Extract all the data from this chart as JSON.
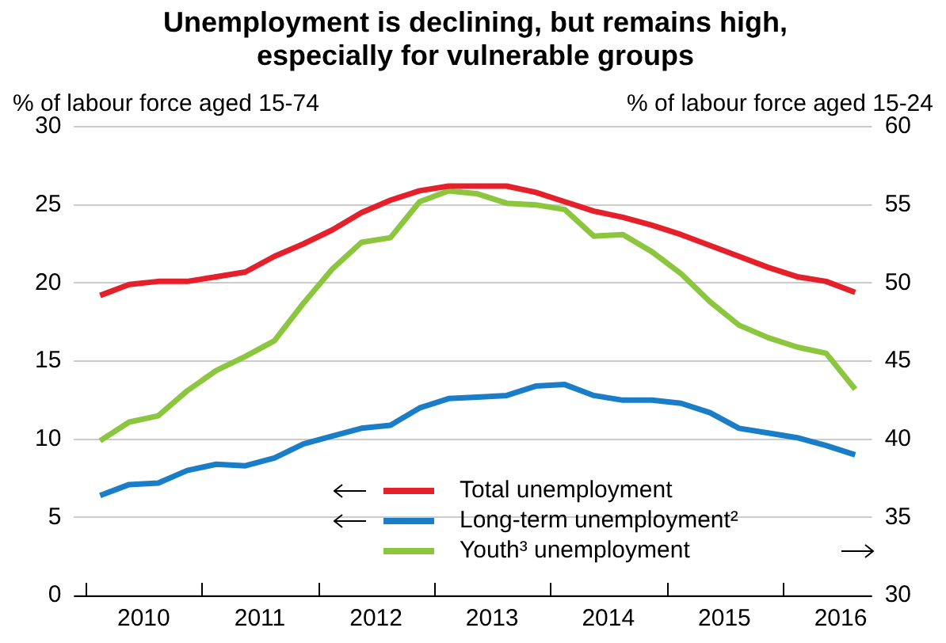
{
  "chart_data": {
    "type": "line",
    "title": "Unemployment is declining, but remains high, especially for vulnerable groups",
    "ylabel": "% of labour force aged 15-74",
    "y2label": "% of labour force aged 15-24",
    "x": [
      2010.125,
      2010.375,
      2010.625,
      2010.875,
      2011.125,
      2011.375,
      2011.625,
      2011.875,
      2012.125,
      2012.375,
      2012.625,
      2012.875,
      2013.125,
      2013.375,
      2013.625,
      2013.875,
      2014.125,
      2014.375,
      2014.625,
      2014.875,
      2015.125,
      2015.375,
      2015.625,
      2015.875,
      2016.125,
      2016.375,
      2016.625
    ],
    "series": [
      {
        "name": "Total unemployment",
        "color": "#e4202b",
        "values": [
          19.2,
          19.9,
          20.1,
          20.1,
          20.4,
          20.7,
          21.7,
          22.5,
          23.4,
          24.5,
          25.3,
          25.9,
          26.2,
          26.2,
          26.2,
          25.8,
          25.2,
          24.6,
          24.2,
          23.7,
          23.1,
          22.4,
          21.7,
          21.0,
          20.4,
          20.1,
          19.4
        ]
      },
      {
        "name": "Long-term unemployment²",
        "color": "#1a7dc8",
        "values": [
          6.4,
          7.1,
          7.2,
          8.0,
          8.4,
          8.3,
          8.8,
          9.7,
          10.2,
          10.7,
          10.9,
          12.0,
          12.6,
          12.7,
          12.8,
          13.4,
          13.5,
          12.8,
          12.5,
          12.5,
          12.3,
          11.7,
          10.7,
          10.4,
          10.1,
          9.6,
          9.0
        ]
      },
      {
        "name": "Youth³ unemployment",
        "color": "#8cc63e",
        "axis": "y2",
        "values": [
          39.9,
          41.1,
          41.5,
          43.1,
          44.4,
          45.3,
          46.3,
          48.7,
          50.9,
          52.6,
          52.9,
          55.2,
          55.9,
          55.7,
          55.1,
          55.0,
          54.7,
          53.0,
          53.1,
          52.0,
          50.6,
          48.8,
          47.3,
          46.5,
          45.9,
          45.5,
          43.2
        ]
      }
    ],
    "xlim": [
      2009.9,
      2016.77
    ],
    "xticks": [
      {
        "value": 2010,
        "label": null
      },
      {
        "value": 2010.5,
        "label": "2010"
      },
      {
        "value": 2011,
        "label": null
      },
      {
        "value": 2011.5,
        "label": "2011"
      },
      {
        "value": 2012,
        "label": null
      },
      {
        "value": 2012.5,
        "label": "2012"
      },
      {
        "value": 2013,
        "label": null
      },
      {
        "value": 2013.5,
        "label": "2013"
      },
      {
        "value": 2014,
        "label": null
      },
      {
        "value": 2014.5,
        "label": "2014"
      },
      {
        "value": 2015,
        "label": null
      },
      {
        "value": 2015.5,
        "label": "2015"
      },
      {
        "value": 2016,
        "label": null
      },
      {
        "value": 2016.5,
        "label": "2016"
      }
    ],
    "ylim": [
      0,
      30
    ],
    "yticks": [
      0,
      5,
      10,
      15,
      20,
      25,
      30
    ],
    "y2lim": [
      30,
      60
    ],
    "y2ticks": [
      30,
      35,
      40,
      45,
      50,
      55,
      60
    ],
    "grid": "y",
    "legend": "bottom",
    "marker": "none",
    "line_style": "solid"
  }
}
